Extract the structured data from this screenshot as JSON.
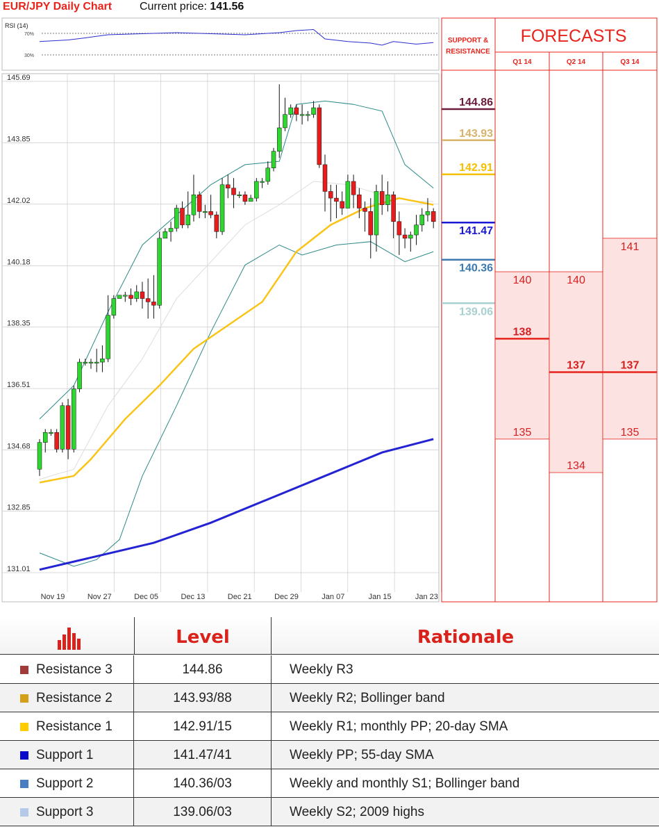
{
  "header": {
    "title": "EUR/JPY Daily Chart",
    "price_label": "Current price:",
    "price_value": "141.56"
  },
  "rsi_panel": {
    "title": "RSI (14)",
    "upper_label": "70%",
    "lower_label": "30%"
  },
  "sr_panel": {
    "title_line1": "SUPPORT &",
    "title_line2": "RESISTANCE"
  },
  "forecast_panel": {
    "title": "FORECASTS",
    "quarters": [
      "Q1 14",
      "Q2 14",
      "Q3 14"
    ]
  },
  "colors": {
    "red": "#e8231b",
    "up_candle": "#2fd62f",
    "down_candle": "#e81c1c",
    "sma20": "#fac417",
    "sma55": "#2323d4",
    "bollinger": "#2a8a86"
  },
  "chart_data": {
    "type": "candlestick",
    "title": "EUR/JPY Daily Chart",
    "y_ticks": [
      "145.69",
      "143.85",
      "142.02",
      "140.18",
      "138.35",
      "136.51",
      "134.68",
      "132.85",
      "131.01"
    ],
    "ylim": [
      131.01,
      145.69
    ],
    "x_ticks": [
      "Nov 19",
      "Nov 27",
      "Dec 05",
      "Dec 13",
      "Dec 21",
      "Dec 29",
      "Jan 07",
      "Jan 15",
      "Jan 23"
    ],
    "candles": [
      [
        134.1,
        134.9,
        133.9,
        135.0
      ],
      [
        134.9,
        135.2,
        134.6,
        135.3
      ],
      [
        135.2,
        135.2,
        135.1,
        135.3
      ],
      [
        135.2,
        134.7,
        134.6,
        135.3
      ],
      [
        134.7,
        136.0,
        134.6,
        136.1
      ],
      [
        136.0,
        134.7,
        134.4,
        136.2
      ],
      [
        134.7,
        136.5,
        134.6,
        136.6
      ],
      [
        136.5,
        137.3,
        136.4,
        137.4
      ],
      [
        137.3,
        137.3,
        137.2,
        137.4
      ],
      [
        137.3,
        137.3,
        137.1,
        137.4
      ],
      [
        137.3,
        137.3,
        137.0,
        137.7
      ],
      [
        137.3,
        137.4,
        137.0,
        137.8
      ],
      [
        137.4,
        138.7,
        137.3,
        139.3
      ],
      [
        138.7,
        139.2,
        138.6,
        139.3
      ],
      [
        139.2,
        139.3,
        139.2,
        139.3
      ],
      [
        139.3,
        139.3,
        139.1,
        139.4
      ],
      [
        139.3,
        139.2,
        139.0,
        139.5
      ],
      [
        139.2,
        139.4,
        139.1,
        139.6
      ],
      [
        139.4,
        139.2,
        138.9,
        139.7
      ],
      [
        139.2,
        139.1,
        138.6,
        139.8
      ],
      [
        139.1,
        139.0,
        138.6,
        139.9
      ],
      [
        139.0,
        141.0,
        138.9,
        141.2
      ],
      [
        141.0,
        141.2,
        141.0,
        141.3
      ],
      [
        141.2,
        141.3,
        140.9,
        141.5
      ],
      [
        141.3,
        141.9,
        141.2,
        142.0
      ],
      [
        141.9,
        141.4,
        141.3,
        142.1
      ],
      [
        141.4,
        141.7,
        141.3,
        142.4
      ],
      [
        141.7,
        142.3,
        141.5,
        142.9
      ],
      [
        142.3,
        141.8,
        141.6,
        142.4
      ],
      [
        141.8,
        141.8,
        141.6,
        142.0
      ],
      [
        141.8,
        141.7,
        141.6,
        142.3
      ],
      [
        141.7,
        141.2,
        141.0,
        141.8
      ],
      [
        141.2,
        142.6,
        141.1,
        142.8
      ],
      [
        142.6,
        142.5,
        142.2,
        142.9
      ],
      [
        142.5,
        142.3,
        141.9,
        142.8
      ],
      [
        142.3,
        142.3,
        142.2,
        142.4
      ],
      [
        142.3,
        142.1,
        142.0,
        142.4
      ],
      [
        142.1,
        142.2,
        142.1,
        142.3
      ],
      [
        142.2,
        142.7,
        142.1,
        142.8
      ],
      [
        142.7,
        142.7,
        142.5,
        142.8
      ],
      [
        142.7,
        143.1,
        142.6,
        143.3
      ],
      [
        143.1,
        143.6,
        143.0,
        143.7
      ],
      [
        143.6,
        144.3,
        143.4,
        145.6
      ],
      [
        144.3,
        144.7,
        144.2,
        145.2
      ],
      [
        144.7,
        144.9,
        144.6,
        145.0
      ],
      [
        144.9,
        144.7,
        144.5,
        145.0
      ],
      [
        144.7,
        144.7,
        144.4,
        145.0
      ],
      [
        144.7,
        144.7,
        144.5,
        144.8
      ],
      [
        144.7,
        144.9,
        144.6,
        145.1
      ],
      [
        144.9,
        143.2,
        143.1,
        145.0
      ],
      [
        143.2,
        142.4,
        141.8,
        143.5
      ],
      [
        142.4,
        142.2,
        141.5,
        142.6
      ],
      [
        142.2,
        142.1,
        141.6,
        142.6
      ],
      [
        142.1,
        141.9,
        141.7,
        142.4
      ],
      [
        141.9,
        142.7,
        141.9,
        142.9
      ],
      [
        142.7,
        142.3,
        141.9,
        142.9
      ],
      [
        142.3,
        141.9,
        141.6,
        142.5
      ],
      [
        141.9,
        141.8,
        141.2,
        142.1
      ],
      [
        141.8,
        141.1,
        140.4,
        142.2
      ],
      [
        141.1,
        142.4,
        140.6,
        142.6
      ],
      [
        142.4,
        142.0,
        141.7,
        142.9
      ],
      [
        142.0,
        142.3,
        141.8,
        142.7
      ],
      [
        142.3,
        141.5,
        141.0,
        142.4
      ],
      [
        141.5,
        141.1,
        140.5,
        141.8
      ],
      [
        141.1,
        141.0,
        140.7,
        141.3
      ],
      [
        141.0,
        141.1,
        140.6,
        141.2
      ],
      [
        141.1,
        141.4,
        140.8,
        141.7
      ],
      [
        141.4,
        141.7,
        141.2,
        141.9
      ],
      [
        141.7,
        141.8,
        141.5,
        142.2
      ],
      [
        141.8,
        141.5,
        141.3,
        141.9
      ]
    ],
    "sma20": [
      [
        0,
        133.7
      ],
      [
        6,
        133.9
      ],
      [
        9,
        134.4
      ],
      [
        15,
        135.6
      ],
      [
        21,
        136.6
      ],
      [
        27,
        137.7
      ],
      [
        33,
        138.4
      ],
      [
        39,
        139.1
      ],
      [
        45,
        140.6
      ],
      [
        51,
        141.4
      ],
      [
        57,
        141.9
      ],
      [
        63,
        142.2
      ],
      [
        69,
        142.0
      ]
    ],
    "sma55": [
      [
        0,
        131.1
      ],
      [
        10,
        131.5
      ],
      [
        20,
        131.9
      ],
      [
        30,
        132.5
      ],
      [
        40,
        133.2
      ],
      [
        50,
        133.9
      ],
      [
        60,
        134.6
      ],
      [
        69,
        135.0
      ]
    ],
    "bollinger_upper": [
      [
        0,
        135.6
      ],
      [
        6,
        136.6
      ],
      [
        12,
        138.8
      ],
      [
        18,
        140.8
      ],
      [
        24,
        141.7
      ],
      [
        30,
        142.6
      ],
      [
        36,
        143.2
      ],
      [
        42,
        143.3
      ],
      [
        45,
        145.0
      ],
      [
        50,
        145.1
      ],
      [
        55,
        145.0
      ],
      [
        60,
        144.8
      ],
      [
        64,
        143.2
      ],
      [
        69,
        142.5
      ]
    ],
    "bollinger_lower": [
      [
        0,
        131.6
      ],
      [
        6,
        131.2
      ],
      [
        10,
        131.4
      ],
      [
        14,
        132.0
      ],
      [
        18,
        133.9
      ],
      [
        24,
        136.0
      ],
      [
        30,
        138.2
      ],
      [
        36,
        140.2
      ],
      [
        42,
        140.8
      ],
      [
        46,
        140.5
      ],
      [
        52,
        140.8
      ],
      [
        58,
        140.9
      ],
      [
        64,
        140.3
      ],
      [
        69,
        140.6
      ]
    ],
    "bollinger_mid": [
      [
        0,
        133.8
      ],
      [
        6,
        134.1
      ],
      [
        12,
        136.0
      ],
      [
        18,
        137.4
      ],
      [
        24,
        139.2
      ],
      [
        30,
        140.3
      ],
      [
        36,
        141.4
      ],
      [
        42,
        142.0
      ],
      [
        48,
        142.7
      ],
      [
        54,
        142.6
      ],
      [
        60,
        142.3
      ],
      [
        66,
        142.1
      ],
      [
        69,
        142.1
      ]
    ],
    "rsi": [
      [
        0,
        55
      ],
      [
        5,
        58
      ],
      [
        8,
        62
      ],
      [
        12,
        68
      ],
      [
        18,
        70
      ],
      [
        24,
        72
      ],
      [
        30,
        70
      ],
      [
        36,
        68
      ],
      [
        42,
        72
      ],
      [
        45,
        76
      ],
      [
        48,
        78
      ],
      [
        50,
        60
      ],
      [
        54,
        55
      ],
      [
        58,
        52
      ],
      [
        60,
        48
      ],
      [
        62,
        55
      ],
      [
        66,
        50
      ],
      [
        69,
        53
      ]
    ],
    "rsi_levels": [
      70,
      30
    ]
  },
  "levels": [
    {
      "name": "Resistance 3",
      "value": "144.86",
      "y": 144.86,
      "color": "#6b1c3c",
      "swatch": "#a23a3a",
      "level": "144.86",
      "rationale": "Weekly R3"
    },
    {
      "name": "Resistance 2",
      "value": "143.93",
      "y": 143.93,
      "color": "#d9b36a",
      "swatch": "#d4a017",
      "level": "143.93/88",
      "rationale": "Weekly R2; Bollinger band"
    },
    {
      "name": "Resistance 1",
      "value": "142.91",
      "y": 142.91,
      "color": "#f5c000",
      "swatch": "#ffcc00",
      "level": "142.91/15",
      "rationale": "Weekly R1; monthly PP; 20-day SMA"
    },
    {
      "name": "Support 1",
      "value": "141.47",
      "y": 141.47,
      "color": "#1a1ad4",
      "swatch": "#0a0acc",
      "level": "141.47/41",
      "rationale": "Weekly PP; 55-day SMA"
    },
    {
      "name": "Support 2",
      "value": "140.36",
      "y": 140.36,
      "color": "#3a7ab0",
      "swatch": "#4a7ec2",
      "level": "140.36/03",
      "rationale": "Weekly and monthly S1; Bollinger band"
    },
    {
      "name": "Support 3",
      "value": "139.06",
      "y": 139.06,
      "color": "#a8d0d0",
      "swatch": "#b4c8e8",
      "level": "139.06/03",
      "rationale": "Weekly S2; 2009 highs"
    }
  ],
  "forecasts": [
    {
      "quarter": "Q1 14",
      "high": "140",
      "mid": "138",
      "low": "135",
      "high_v": 140,
      "mid_v": 138,
      "low_v": 135
    },
    {
      "quarter": "Q2 14",
      "high": "140",
      "mid": "137",
      "low": "134",
      "high_v": 140,
      "mid_v": 137,
      "low_v": 134
    },
    {
      "quarter": "Q3 14",
      "high": "141",
      "mid": "137",
      "low": "135",
      "high_v": 141,
      "mid_v": 137,
      "low_v": 135
    }
  ],
  "table": {
    "header_level": "Level",
    "header_rationale": "Rationale"
  }
}
